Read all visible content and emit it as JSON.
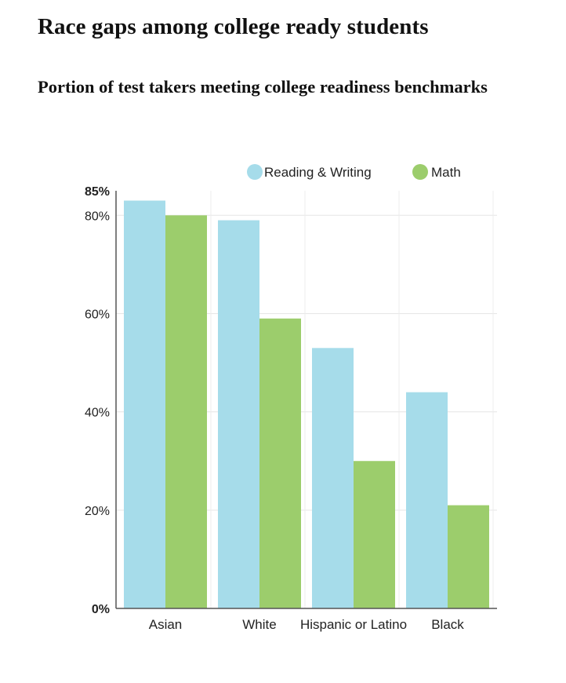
{
  "chart_data": {
    "type": "bar",
    "title": "Race gaps among college ready students",
    "subtitle": "Portion of test takers meeting college readiness benchmarks",
    "categories": [
      "Asian",
      "White",
      "Hispanic or Latino",
      "Black"
    ],
    "series": [
      {
        "name": "Reading & Writing",
        "color": "#a6dcea",
        "values": [
          83,
          79,
          53,
          44
        ]
      },
      {
        "name": "Math",
        "color": "#9ccd6c",
        "values": [
          80,
          59,
          30,
          21
        ]
      }
    ],
    "ylim": [
      0,
      85
    ],
    "yticks": [
      {
        "value": 0,
        "label": "0%",
        "bold": true
      },
      {
        "value": 20,
        "label": "20%",
        "bold": false
      },
      {
        "value": 40,
        "label": "40%",
        "bold": false
      },
      {
        "value": 60,
        "label": "60%",
        "bold": false
      },
      {
        "value": 80,
        "label": "80%",
        "bold": false
      },
      {
        "value": 85,
        "label": "85%",
        "bold": true
      }
    ],
    "legend_position": "top-right",
    "grid": true
  }
}
